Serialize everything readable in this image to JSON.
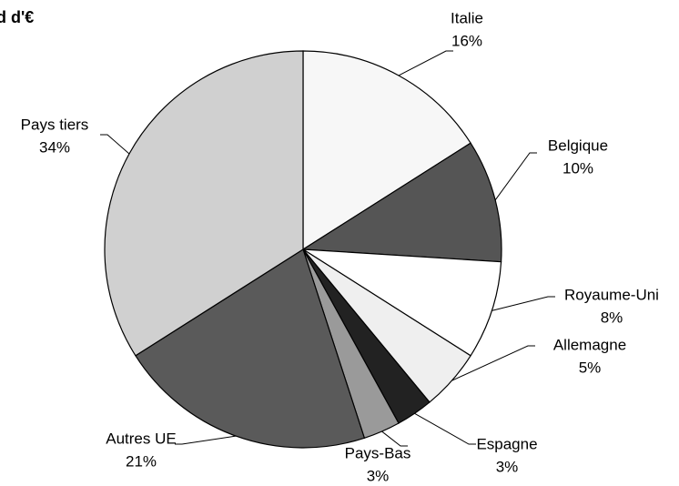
{
  "chart_data": {
    "type": "pie",
    "title": "d d'€",
    "categories": [
      "Italie",
      "Belgique",
      "Royaume-Uni",
      "Allemagne",
      "Espagne",
      "Pays-Bas",
      "Autres UE",
      "Pays tiers"
    ],
    "values": [
      16,
      10,
      8,
      5,
      3,
      3,
      21,
      34
    ],
    "value_labels": [
      "16%",
      "10%",
      "8%",
      "5%",
      "3%",
      "3%",
      "21%",
      "34%"
    ],
    "colors": [
      "#f7f7f7",
      "#555555",
      "#ffffff",
      "#efefef",
      "#222222",
      "#9a9a9a",
      "#5a5a5a",
      "#d0d0d0"
    ]
  }
}
